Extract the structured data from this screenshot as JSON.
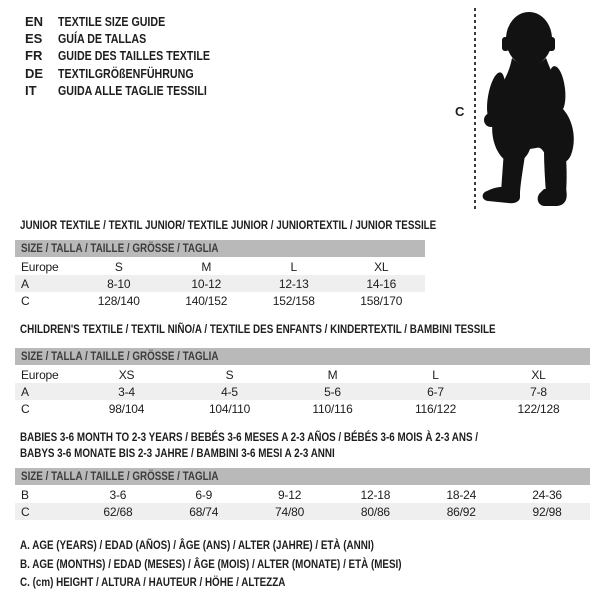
{
  "colors": {
    "text": "#1d1d1b",
    "header_bar": "#b9b9b9",
    "row_shade": "#efefef",
    "silhouette": "#121212"
  },
  "languages": [
    {
      "code": "EN",
      "label": "TEXTILE SIZE GUIDE"
    },
    {
      "code": "ES",
      "label": "GUÍA DE TALLAS"
    },
    {
      "code": "FR",
      "label": "GUIDE DES TAILLES TEXTILE"
    },
    {
      "code": "DE",
      "label": "TEXTILGRÖßENFÜHRUNG"
    },
    {
      "code": "IT",
      "label": "GUIDA ALLE TAGLIE TESSILI"
    }
  ],
  "figure": {
    "measure_label": "C",
    "silhouette_name": "toddler-silhouette"
  },
  "tables": [
    {
      "title_lines": [
        "JUNIOR TEXTILE / TEXTIL JUNIOR/ TEXTILE JUNIOR / JUNIORTEXTIL / JUNIOR TESSILE"
      ],
      "size_header": "SIZE / TALLA / TAILLE / GRÖSSE / TAGLIA",
      "rows": [
        {
          "label": "Europe",
          "cells": [
            "S",
            "M",
            "L",
            "XL"
          ]
        },
        {
          "label": "A",
          "cells": [
            "8-10",
            "10-12",
            "12-13",
            "14-16"
          ]
        },
        {
          "label": "C",
          "cells": [
            "128/140",
            "140/152",
            "152/158",
            "158/170"
          ]
        }
      ]
    },
    {
      "title_lines": [
        "CHILDREN'S TEXTILE / TEXTIL NIÑO/A / TEXTILE DES ENFANTS / KINDERTEXTIL / BAMBINI TESSILE"
      ],
      "size_header": "SIZE / TALLA / TAILLE / GRÖSSE / TAGLIA",
      "rows": [
        {
          "label": "Europe",
          "cells": [
            "XS",
            "S",
            "M",
            "L",
            "XL"
          ]
        },
        {
          "label": "A",
          "cells": [
            "3-4",
            "4-5",
            "5-6",
            "6-7",
            "7-8"
          ]
        },
        {
          "label": "C",
          "cells": [
            "98/104",
            "104/110",
            "110/116",
            "116/122",
            "122/128"
          ]
        }
      ]
    },
    {
      "title_lines": [
        "BABIES 3-6 MONTH TO 2-3 YEARS / BEBÉS 3-6 MESES A 2-3 AÑOS / BÉBÉS 3-6 MOIS À 2-3 ANS /",
        "BABYS 3-6 MONATE BIS 2-3 JAHRE / BAMBINI 3-6 MESI A 2-3 ANNI"
      ],
      "size_header": "SIZE / TALLA / TAILLE / GRÖSSE / TAGLIA",
      "rows": [
        {
          "label": "B",
          "cells": [
            "3-6",
            "6-9",
            "9-12",
            "12-18",
            "18-24",
            "24-36"
          ]
        },
        {
          "label": "C",
          "cells": [
            "62/68",
            "68/74",
            "74/80",
            "80/86",
            "86/92",
            "92/98"
          ]
        }
      ]
    }
  ],
  "footnotes": [
    "A. AGE (YEARS) / EDAD (AÑOS) / ÂGE (ANS) / ALTER (JAHRE) / ETÀ (ANNI)",
    "B. AGE (MONTHS) / EDAD (MESES) / ÂGE (MOIS) / ALTER (MONATE) / ETÀ (MESI)",
    "C. (cm) HEIGHT / ALTURA / HAUTEUR / HÖHE / ALTEZZA"
  ]
}
